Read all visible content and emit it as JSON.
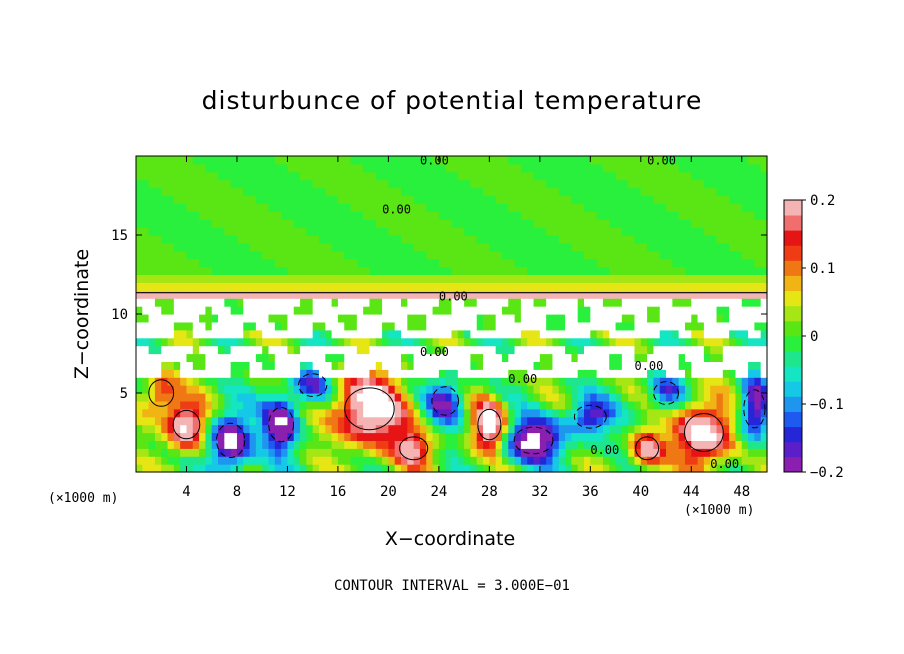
{
  "chart_data": {
    "type": "heatmap",
    "title": "disturbunce of potential temperature",
    "xlabel": "X−coordinate",
    "ylabel": "Z−coordinate",
    "x_unit": "(×1000 m)",
    "xlim": [
      0,
      50
    ],
    "ylim": [
      0,
      20
    ],
    "x_ticks": [
      4,
      8,
      12,
      16,
      20,
      24,
      28,
      32,
      36,
      40,
      44,
      48
    ],
    "y_ticks": [
      5,
      10,
      15
    ],
    "colorbar": {
      "range": [
        -0.2,
        0.2
      ],
      "ticks": [
        {
          "value": 0.2,
          "label": "0.2"
        },
        {
          "value": 0.1,
          "label": "0.1"
        },
        {
          "value": 0,
          "label": "0"
        },
        {
          "value": -0.1,
          "label": "−0.1"
        },
        {
          "value": -0.2,
          "label": "−0.2"
        }
      ],
      "colors": [
        "#8a1fb0",
        "#5a1fc8",
        "#2626d9",
        "#1e5af0",
        "#1e96f0",
        "#14c8e6",
        "#14e6c3",
        "#1ee68c",
        "#28f03c",
        "#5ae614",
        "#a5e614",
        "#e6e614",
        "#f0b414",
        "#f07814",
        "#f03c14",
        "#e61414",
        "#f06e6e",
        "#f5b4b4"
      ]
    },
    "contour_labels": [
      {
        "x": 22.5,
        "z": 19.7,
        "text": "0.00"
      },
      {
        "x": 40.5,
        "z": 19.7,
        "text": "0.00"
      },
      {
        "x": 19.5,
        "z": 16.6,
        "text": "0.00"
      },
      {
        "x": 24.0,
        "z": 11.1,
        "text": "0.00"
      },
      {
        "x": 22.5,
        "z": 7.6,
        "text": "0.00"
      },
      {
        "x": 29.5,
        "z": 5.9,
        "text": "0.00"
      },
      {
        "x": 39.5,
        "z": 6.7,
        "text": "0.00"
      },
      {
        "x": 36.0,
        "z": 1.4,
        "text": "0.00"
      },
      {
        "x": 45.5,
        "z": 0.5,
        "text": "0.00"
      }
    ],
    "features": [
      {
        "kind": "warm-cell",
        "x": 4.0,
        "z": 3.0,
        "sx": 1.5,
        "sz": 1.5,
        "v": 0.26
      },
      {
        "kind": "cold-cell",
        "x": 7.5,
        "z": 2.0,
        "sx": 1.6,
        "sz": 1.8,
        "v": -0.26
      },
      {
        "kind": "warm-cell",
        "x": 18.5,
        "z": 4.0,
        "sx": 2.8,
        "sz": 2.2,
        "v": 0.28
      },
      {
        "kind": "cold-cell",
        "x": 11.5,
        "z": 3.0,
        "sx": 1.4,
        "sz": 1.8,
        "v": -0.22
      },
      {
        "kind": "cold-cell",
        "x": 31.5,
        "z": 2.0,
        "sx": 2.2,
        "sz": 1.4,
        "v": -0.25
      },
      {
        "kind": "warm-cell",
        "x": 28.0,
        "z": 3.0,
        "sx": 1.3,
        "sz": 1.6,
        "v": 0.26
      },
      {
        "kind": "warm-cell",
        "x": 45.0,
        "z": 2.5,
        "sx": 2.2,
        "sz": 2.0,
        "v": 0.27
      },
      {
        "kind": "cold-cell",
        "x": 49.0,
        "z": 4.0,
        "sx": 1.2,
        "sz": 2.0,
        "v": -0.22
      },
      {
        "kind": "warm-cell",
        "x": 40.5,
        "z": 1.5,
        "sx": 1.3,
        "sz": 1.2,
        "v": 0.2
      },
      {
        "kind": "cold-cell",
        "x": 36.0,
        "z": 3.5,
        "sx": 1.8,
        "sz": 1.2,
        "v": -0.18
      },
      {
        "kind": "warm-cell",
        "x": 22.0,
        "z": 1.5,
        "sx": 1.6,
        "sz": 1.2,
        "v": 0.18
      },
      {
        "kind": "cold-cell",
        "x": 24.5,
        "z": 4.5,
        "sx": 1.5,
        "sz": 1.5,
        "v": -0.17
      },
      {
        "kind": "cold-cell",
        "x": 14.0,
        "z": 5.5,
        "sx": 1.6,
        "sz": 1.2,
        "v": -0.15
      },
      {
        "kind": "warm-cell",
        "x": 2.0,
        "z": 5.0,
        "sx": 1.4,
        "sz": 1.4,
        "v": 0.15
      },
      {
        "kind": "cold-cell",
        "x": 42.0,
        "z": 5.0,
        "sx": 1.4,
        "sz": 1.2,
        "v": -0.14
      }
    ],
    "saturated_bands": [
      {
        "x0": 0,
        "x1": 50,
        "z0": 6.0,
        "z1": 7.8,
        "v": 0.3
      },
      {
        "x0": 0,
        "x1": 50,
        "z0": 8.6,
        "z1": 10.8,
        "v": 0.3
      }
    ],
    "stable_layer_z": 11.2,
    "grid": false,
    "legend": "colorbar-right"
  },
  "contour_interval_note": "CONTOUR INTERVAL = 3.000E−01"
}
